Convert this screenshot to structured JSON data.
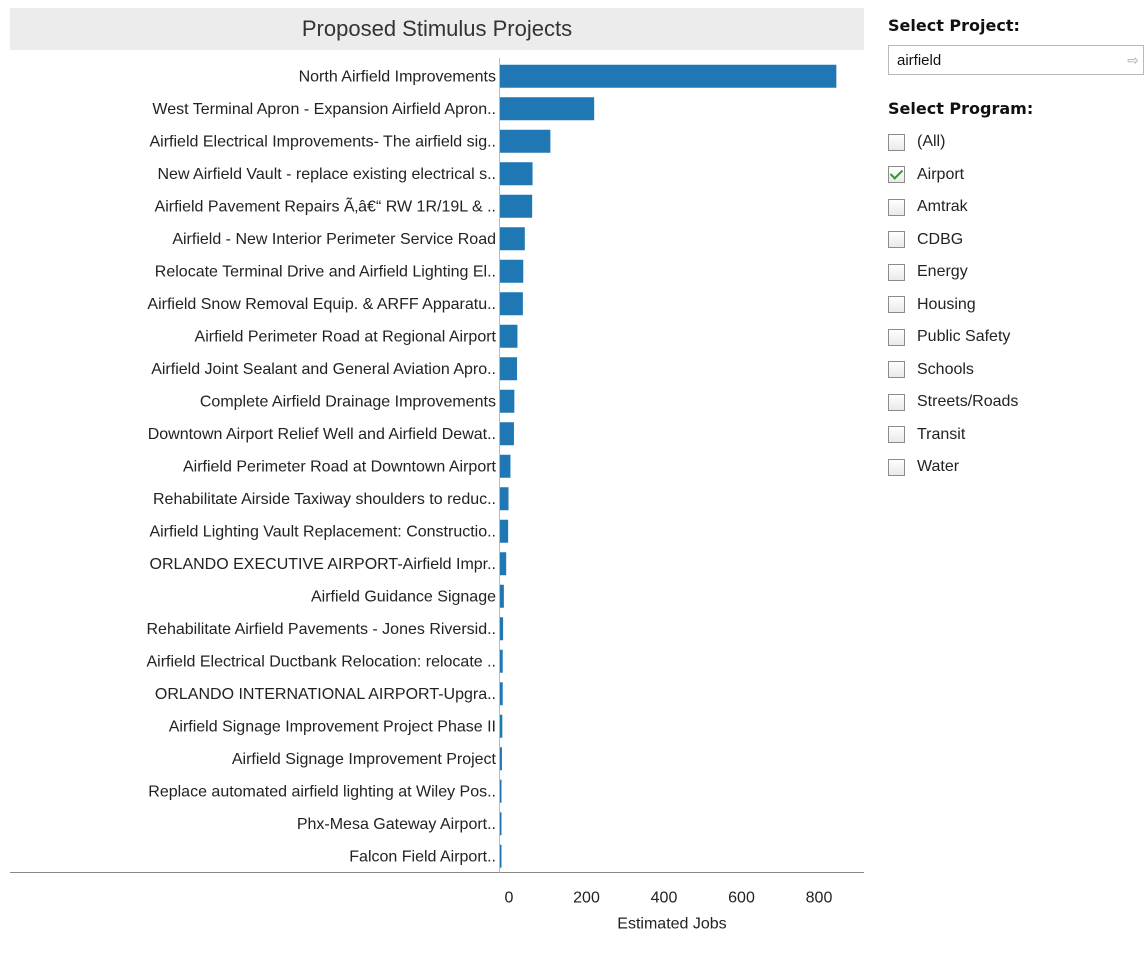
{
  "title": "Proposed Stimulus Projects",
  "chart_data": {
    "type": "bar",
    "orientation": "horizontal",
    "title": "Proposed Stimulus Projects",
    "xlabel": "Estimated Jobs",
    "ylabel": "",
    "xlim": [
      0,
      870
    ],
    "xticks": [
      "0",
      "200",
      "400",
      "600",
      "800"
    ],
    "grid": false,
    "categories": [
      "North Airfield Improvements",
      "West Terminal Apron - Expansion Airfield Apron..",
      "Airfield Electrical Improvements- The airfield sig..",
      "New Airfield Vault - replace existing electrical s..",
      "Airfield Pavement Repairs Ã‚â€“ RW 1R/19L & ..",
      "Airfield - New Interior Perimeter Service Road",
      "Relocate Terminal Drive and Airfield Lighting El..",
      "Airfield Snow Removal Equip. & ARFF Apparatu..",
      "Airfield Perimeter Road at Regional Airport",
      "Airfield Joint Sealant and General Aviation Apro..",
      "Complete Airfield Drainage Improvements",
      "Downtown Airport Relief Well and Airfield Dewat..",
      "Airfield Perimeter Road at Downtown Airport",
      "Rehabilitate Airside Taxiway shoulders to reduc..",
      "Airfield Lighting Vault Replacement: Constructio..",
      "ORLANDO EXECUTIVE AIRPORT-Airfield Impr..",
      "Airfield Guidance Signage",
      "Rehabilitate Airfield Pavements - Jones Riversid..",
      "Airfield Electrical Ductbank Relocation: relocate ..",
      "ORLANDO INTERNATIONAL AIRPORT-Upgra..",
      "Airfield Signage Improvement Project Phase II",
      "Airfield Signage Improvement Project",
      "Replace automated airfield lighting at Wiley Pos..",
      "Phx-Mesa Gateway Airport..",
      "Falcon Field Airport.."
    ],
    "values": [
      868,
      243,
      130,
      84,
      83,
      64,
      60,
      59,
      45,
      44,
      37,
      36,
      27,
      22,
      21,
      16,
      10,
      8,
      7,
      7,
      6,
      5,
      3,
      2,
      1
    ],
    "colors": {
      "bar": "#1f77b4"
    }
  },
  "filters": {
    "project": {
      "heading": "Select Project:",
      "value": "airfield"
    },
    "program": {
      "heading": "Select Program:",
      "items": [
        {
          "label": "(All)",
          "checked": false
        },
        {
          "label": "Airport",
          "checked": true
        },
        {
          "label": "Amtrak",
          "checked": false
        },
        {
          "label": "CDBG",
          "checked": false
        },
        {
          "label": "Energy",
          "checked": false
        },
        {
          "label": "Housing",
          "checked": false
        },
        {
          "label": "Public Safety",
          "checked": false
        },
        {
          "label": "Schools",
          "checked": false
        },
        {
          "label": "Streets/Roads",
          "checked": false
        },
        {
          "label": "Transit",
          "checked": false
        },
        {
          "label": "Water",
          "checked": false
        }
      ]
    }
  }
}
